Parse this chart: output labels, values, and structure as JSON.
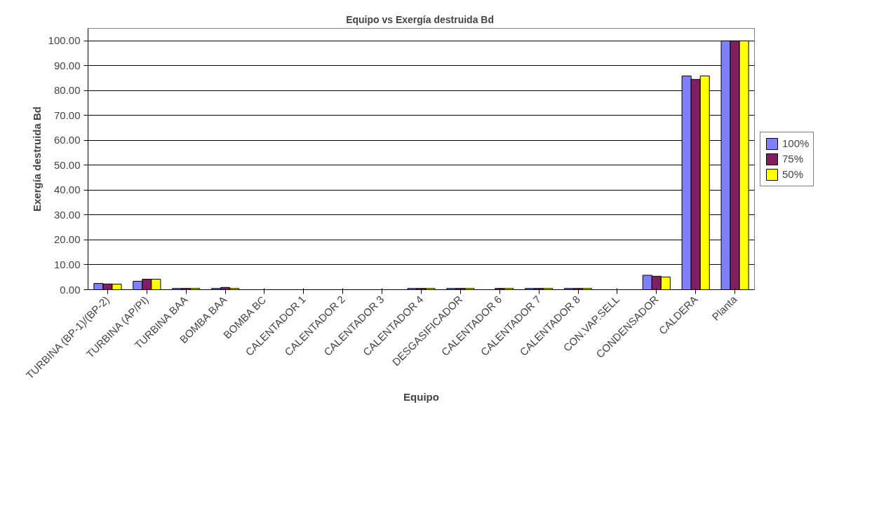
{
  "chart_data": {
    "type": "bar",
    "title": "Equipo vs  Exergía destruida Bd",
    "xlabel": "Equipo",
    "ylabel": "Exergía destruida Bd",
    "categories": [
      "TURBINA (BP-1)/(BP-2)",
      "TURBINA (AP/PI)",
      "TURBINA BAA",
      "BOMBA BAA",
      "BOMBA BC",
      "CALENTADOR 1",
      "CALENTADOR 2",
      "CALENTADOR 3",
      "CALENTADOR 4",
      "DESGASIFICADOR",
      "CALENTADOR 6",
      "CALENTADOR 7",
      "CALENTADOR 8",
      "CON.VAP.SELL",
      "CONDENSADOR",
      "CALDERA",
      "Planta"
    ],
    "series": [
      {
        "name": "100%",
        "color": "#8080ff",
        "values": [
          2.5,
          3.4,
          0.5,
          0.5,
          null,
          null,
          null,
          null,
          0.5,
          0.5,
          null,
          0.5,
          0.5,
          null,
          5.8,
          85.9,
          100
        ]
      },
      {
        "name": "75%",
        "color": "#802060",
        "values": [
          2.3,
          4.2,
          0.5,
          0.9,
          null,
          null,
          null,
          null,
          0.5,
          0.5,
          0.5,
          0.5,
          0.5,
          null,
          5.4,
          84.5,
          100
        ]
      },
      {
        "name": "50%",
        "color": "#ffff00",
        "values": [
          2.2,
          4.2,
          0.5,
          0.5,
          null,
          null,
          null,
          null,
          0.5,
          0.5,
          0.5,
          0.5,
          0.5,
          null,
          5.1,
          85.9,
          100
        ]
      }
    ],
    "ylim": [
      0,
      105
    ],
    "yticks": [
      {
        "value": 0,
        "label": "0.00"
      },
      {
        "value": 10,
        "label": "10.00"
      },
      {
        "value": 20,
        "label": "20.00"
      },
      {
        "value": 30,
        "label": "30.00"
      },
      {
        "value": 40,
        "label": "40.00"
      },
      {
        "value": 50,
        "label": "50.00"
      },
      {
        "value": 60,
        "label": "60.00"
      },
      {
        "value": 70,
        "label": "70.00"
      },
      {
        "value": 80,
        "label": "80.00"
      },
      {
        "value": 90,
        "label": "90.00"
      },
      {
        "value": 100,
        "label": "100.00"
      }
    ],
    "grid": "y",
    "legend": "right"
  }
}
